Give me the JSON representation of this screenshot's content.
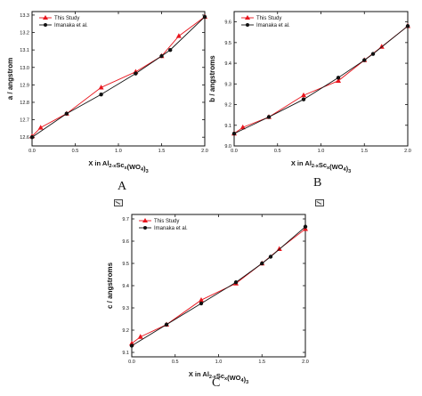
{
  "captions": [
    "A",
    "B",
    "C"
  ],
  "legend": {
    "series_1": "This Study",
    "series_2": "Imanaka et al."
  },
  "colors": {
    "series_1": "#e8141c",
    "series_2": "#111111"
  },
  "chart_data": [
    {
      "type": "line",
      "title": "",
      "xlabel": "X in Al₂₋ₓScₓ(WO₄)₃",
      "ylabel": "a / angstrom",
      "xlim": [
        0.0,
        2.0
      ],
      "ylim": [
        12.55,
        13.32
      ],
      "xticks": [
        "0.0",
        "0.5",
        "1.0",
        "1.5",
        "2.0"
      ],
      "yticks": [
        "12.6",
        "12.7",
        "12.8",
        "12.9",
        "13.0",
        "13.1",
        "13.2",
        "13.3"
      ],
      "legend_position": "top-left",
      "series": [
        {
          "name": "This Study",
          "x": [
            0.0,
            0.1,
            0.4,
            0.8,
            1.2,
            1.5,
            1.7,
            2.0
          ],
          "y": [
            12.605,
            12.655,
            12.735,
            12.885,
            12.975,
            13.065,
            13.18,
            13.29
          ]
        },
        {
          "name": "Imanaka et al.",
          "x": [
            0.0,
            0.4,
            0.8,
            1.2,
            1.5,
            1.6,
            2.0
          ],
          "y": [
            12.6,
            12.735,
            12.845,
            12.965,
            13.065,
            13.1,
            13.29
          ]
        }
      ]
    },
    {
      "type": "line",
      "title": "",
      "xlabel": "X in Al₂₋ₓScₓ(WO₄)₃",
      "ylabel": "b / angstroms",
      "xlim": [
        0.0,
        2.0
      ],
      "ylim": [
        9.0,
        9.65
      ],
      "xticks": [
        "0.0",
        "0.5",
        "1.0",
        "1.5",
        "2.0"
      ],
      "yticks": [
        "9.0",
        "9.1",
        "9.2",
        "9.3",
        "9.4",
        "9.5",
        "9.6"
      ],
      "legend_position": "top-left",
      "series": [
        {
          "name": "This Study",
          "x": [
            0.0,
            0.1,
            0.4,
            0.8,
            1.2,
            1.5,
            1.7,
            2.0
          ],
          "y": [
            9.06,
            9.09,
            9.14,
            9.245,
            9.315,
            9.415,
            9.48,
            9.58
          ]
        },
        {
          "name": "Imanaka et al.",
          "x": [
            0.0,
            0.4,
            0.8,
            1.2,
            1.5,
            1.6,
            2.0
          ],
          "y": [
            9.06,
            9.14,
            9.225,
            9.33,
            9.415,
            9.445,
            9.58
          ]
        }
      ]
    },
    {
      "type": "line",
      "title": "",
      "xlabel": "X in Al₂₋ₓScₓ(WO₄)₃",
      "ylabel": "c / angstroms",
      "xlim": [
        0.0,
        2.0
      ],
      "ylim": [
        9.08,
        9.72
      ],
      "xticks": [
        "0.0",
        "0.5",
        "1.0",
        "1.5",
        "2.0"
      ],
      "yticks": [
        "9.1",
        "9.2",
        "9.3",
        "9.4",
        "9.5",
        "9.6",
        "9.7"
      ],
      "legend_position": "top-left",
      "series": [
        {
          "name": "This Study",
          "x": [
            0.0,
            0.1,
            0.4,
            0.8,
            1.2,
            1.5,
            1.7,
            2.0
          ],
          "y": [
            9.14,
            9.17,
            9.225,
            9.335,
            9.41,
            9.5,
            9.565,
            9.655
          ]
        },
        {
          "name": "Imanaka et al.",
          "x": [
            0.0,
            0.4,
            0.8,
            1.2,
            1.5,
            1.6,
            2.0
          ],
          "y": [
            9.13,
            9.225,
            9.32,
            9.415,
            9.5,
            9.53,
            9.665
          ]
        }
      ]
    }
  ]
}
